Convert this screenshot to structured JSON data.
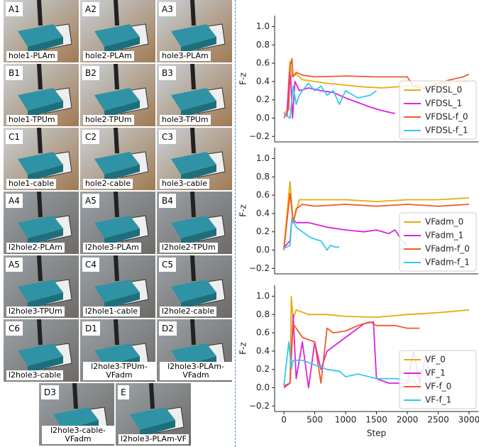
{
  "panels": [
    {
      "id": "A1",
      "label": "hole1-PLAm"
    },
    {
      "id": "A2",
      "label": "hole2-PLAm"
    },
    {
      "id": "A3",
      "label": "hole3-PLAm"
    },
    {
      "id": "B1",
      "label": "hole1-TPUm"
    },
    {
      "id": "B2",
      "label": "hole2-TPUm"
    },
    {
      "id": "B3",
      "label": "hole3-TPUm"
    },
    {
      "id": "C1",
      "label": "hole1-cable"
    },
    {
      "id": "C2",
      "label": "hole2-cable"
    },
    {
      "id": "C3",
      "label": "hole3-cable"
    },
    {
      "id": "A4",
      "label": "l2hole2-PLAm"
    },
    {
      "id": "A5",
      "label": "l2hole3-PLAm"
    },
    {
      "id": "B4",
      "label": "l2hole2-TPUm"
    },
    {
      "id": "A5",
      "label": "l2hole3-TPUm"
    },
    {
      "id": "C4",
      "label": "l2hole1-cable"
    },
    {
      "id": "C5",
      "label": "l2hole2-cable"
    },
    {
      "id": "C6",
      "label": "l2hole3-cable"
    },
    {
      "id": "D1",
      "label": "l2hole3-TPUm-VFadm"
    },
    {
      "id": "D2",
      "label": "l2hole3-PLAm-VFadm"
    },
    {
      "id": "D3",
      "label": "l2hole3-cable-VFadm"
    },
    {
      "id": "E",
      "label": "l2hole3-PLAm-VF"
    }
  ],
  "chart_data": [
    {
      "type": "line",
      "ylabel": "F-z",
      "xlim": [
        -150,
        3150
      ],
      "ylim": [
        -0.26,
        1.12
      ],
      "yticks": [
        {
          "value": -0.2,
          "label": "−0.2"
        },
        {
          "value": 0,
          "label": "0.0"
        },
        0.2,
        0.4,
        0.6,
        0.8,
        {
          "value": 1,
          "label": "1.0"
        }
      ],
      "legend": "lower right",
      "series": [
        {
          "name": "VFDSL_0",
          "color": "#e6ac0c",
          "x": [
            0,
            50,
            100,
            130,
            200,
            300,
            500,
            700,
            1000,
            1300,
            1600,
            2000,
            2300,
            2600,
            3000
          ],
          "values": [
            0.05,
            0.08,
            0.62,
            0.45,
            0.48,
            0.42,
            0.4,
            0.38,
            0.36,
            0.34,
            0.33,
            0.35,
            0.36,
            0.38,
            0.4
          ]
        },
        {
          "name": "VFDSL_1",
          "color": "#dd22dd",
          "x": [
            0,
            50,
            90,
            110,
            140,
            180,
            250,
            400,
            600,
            800,
            1000,
            1200,
            1400,
            1600,
            1800
          ],
          "values": [
            0.05,
            0.02,
            0.5,
            0.45,
            0.0,
            0.4,
            0.3,
            0.33,
            0.3,
            0.28,
            0.22,
            0.17,
            0.12,
            0.08,
            0.05
          ]
        },
        {
          "name": "VFDSL-f_0",
          "color": "#f05a28",
          "x": [
            0,
            80,
            100,
            130,
            150,
            200,
            300,
            500,
            1000,
            1500,
            2000,
            2100,
            2300,
            2500,
            2700,
            2900,
            3000
          ],
          "values": [
            0.0,
            0.1,
            0.55,
            0.65,
            0.45,
            0.5,
            0.47,
            0.45,
            0.46,
            0.45,
            0.45,
            0.35,
            0.32,
            0.38,
            0.42,
            0.45,
            0.48
          ]
        },
        {
          "name": "VFDSL-f_1",
          "color": "#33c8ee",
          "x": [
            0,
            100,
            150,
            200,
            250,
            300,
            400,
            500,
            600,
            700,
            800,
            900,
            1000,
            1200,
            1400,
            1500
          ],
          "values": [
            0.05,
            0.0,
            0.35,
            0.15,
            0.25,
            0.3,
            0.38,
            0.3,
            0.35,
            0.25,
            0.3,
            0.15,
            0.3,
            0.22,
            0.25,
            0.3
          ]
        }
      ]
    },
    {
      "type": "line",
      "ylabel": "F-z",
      "xlim": [
        -150,
        3150
      ],
      "ylim": [
        -0.26,
        1.12
      ],
      "yticks": [
        {
          "value": -0.2,
          "label": "−0.2"
        },
        {
          "value": 0,
          "label": "0.0"
        },
        0.2,
        0.4,
        0.6,
        0.8,
        {
          "value": 1,
          "label": "1.0"
        }
      ],
      "legend": "lower right",
      "series": [
        {
          "name": "VFadm_0",
          "color": "#e6ac0c",
          "x": [
            0,
            100,
            150,
            250,
            500,
            1000,
            1500,
            2000,
            2500,
            3000
          ],
          "values": [
            0.02,
            0.75,
            0.3,
            0.55,
            0.55,
            0.55,
            0.53,
            0.55,
            0.55,
            0.57
          ]
        },
        {
          "name": "VFadm_1",
          "color": "#dd22dd",
          "x": [
            0,
            100,
            130,
            200,
            400,
            700,
            1000,
            1300,
            1500,
            1700,
            1800,
            1900,
            2000
          ],
          "values": [
            0.03,
            0.1,
            0.35,
            0.3,
            0.3,
            0.25,
            0.22,
            0.2,
            0.22,
            0.18,
            0.22,
            0.12,
            0.05
          ]
        },
        {
          "name": "VFadm-f_0",
          "color": "#f05a28",
          "x": [
            0,
            100,
            150,
            200,
            300,
            500,
            1000,
            1500,
            2000,
            2500,
            3000
          ],
          "values": [
            0.0,
            0.62,
            0.3,
            0.45,
            0.5,
            0.48,
            0.5,
            0.48,
            0.5,
            0.48,
            0.5
          ]
        },
        {
          "name": "VFadm-f_1",
          "color": "#33c8ee",
          "x": [
            0,
            100,
            130,
            200,
            300,
            400,
            500,
            600,
            650,
            700,
            750,
            850,
            900
          ],
          "values": [
            0.02,
            0.05,
            0.35,
            0.25,
            0.2,
            0.15,
            0.12,
            0.1,
            0.05,
            0.0,
            0.05,
            0.03,
            0.04
          ]
        }
      ]
    },
    {
      "type": "line",
      "ylabel": "F-z",
      "xlabel": "Step",
      "xlim": [
        -150,
        3150
      ],
      "ylim": [
        -0.26,
        1.12
      ],
      "xticks": [
        0,
        500,
        1000,
        1500,
        2000,
        2500,
        3000
      ],
      "yticks": [
        {
          "value": -0.2,
          "label": "−0.2"
        },
        {
          "value": 0,
          "label": "0.0"
        },
        0.2,
        0.4,
        0.6,
        0.8,
        {
          "value": 1,
          "label": "1.0"
        }
      ],
      "legend": "lower right",
      "series": [
        {
          "name": "VF_0",
          "color": "#e6ac0c",
          "x": [
            0,
            100,
            120,
            150,
            200,
            400,
            700,
            1000,
            1500,
            2000,
            2500,
            3000
          ],
          "values": [
            0.0,
            0.05,
            1.0,
            0.75,
            0.85,
            0.8,
            0.8,
            0.78,
            0.77,
            0.8,
            0.82,
            0.85
          ]
        },
        {
          "name": "VF_1",
          "color": "#dd22dd",
          "x": [
            0,
            100,
            150,
            200,
            300,
            400,
            500,
            600,
            700,
            900,
            1100,
            1300,
            1450,
            1500,
            1700,
            2000,
            2100,
            2200,
            2300,
            2400,
            2500
          ],
          "values": [
            0.02,
            0.05,
            0.8,
            0.1,
            0.5,
            0.0,
            0.5,
            0.2,
            0.4,
            0.5,
            0.6,
            0.7,
            0.72,
            0.1,
            0.05,
            0.05,
            0.4,
            0.05,
            0.35,
            0.0,
            0.1
          ]
        },
        {
          "name": "VF-f_0",
          "color": "#f05a28",
          "x": [
            0,
            100,
            150,
            300,
            500,
            600,
            700,
            800,
            1000,
            1200,
            1400,
            1500,
            1800,
            2000,
            2200
          ],
          "values": [
            0.0,
            0.05,
            0.7,
            0.55,
            0.5,
            0.05,
            0.65,
            0.6,
            0.62,
            0.68,
            0.72,
            0.68,
            0.68,
            0.65,
            0.65
          ]
        },
        {
          "name": "VF-f_1",
          "color": "#33c8ee",
          "x": [
            0,
            80,
            120,
            150,
            300,
            500,
            700,
            900,
            1000,
            1200,
            1500,
            1800,
            2100,
            2200
          ],
          "values": [
            0.02,
            0.5,
            0.2,
            0.3,
            0.3,
            0.25,
            0.2,
            0.18,
            0.12,
            0.15,
            0.1,
            0.1,
            0.07,
            0.0
          ]
        }
      ]
    }
  ]
}
